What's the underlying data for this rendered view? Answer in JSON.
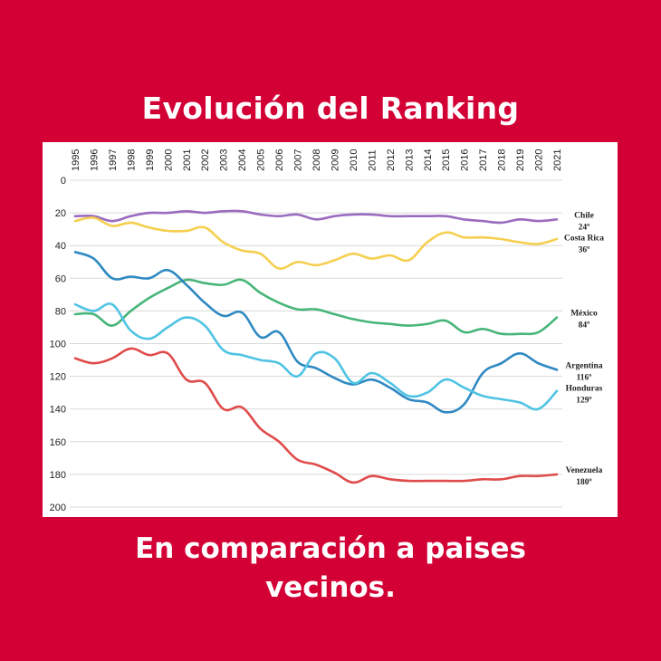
{
  "header": {
    "title": "Evolución del Ranking"
  },
  "footer": {
    "line1": "En comparación a paises",
    "line2": "vecinos."
  },
  "colors": {
    "background": "#d30035",
    "panel": "#ffffff"
  },
  "chart_data": {
    "type": "line",
    "title": "Evolución del Ranking",
    "xlabel": "",
    "ylabel": "",
    "y_inverted": true,
    "ylim": [
      0,
      200
    ],
    "yticks": [
      0,
      20,
      40,
      60,
      80,
      100,
      120,
      140,
      160,
      180,
      200
    ],
    "grid": true,
    "x": [
      1995,
      1996,
      1997,
      1998,
      1999,
      2000,
      2001,
      2002,
      2003,
      2004,
      2005,
      2006,
      2007,
      2008,
      2009,
      2010,
      2011,
      2012,
      2013,
      2014,
      2015,
      2016,
      2017,
      2018,
      2019,
      2020,
      2021
    ],
    "series": [
      {
        "name": "Chile",
        "end_label": "24º",
        "color": "#9b6bbf",
        "values": [
          22,
          22,
          25,
          22,
          20,
          20,
          19,
          20,
          19,
          19,
          21,
          22,
          21,
          24,
          22,
          21,
          21,
          22,
          22,
          22,
          22,
          24,
          25,
          26,
          24,
          25,
          24
        ]
      },
      {
        "name": "Costa Rica",
        "end_label": "36º",
        "color": "#f5cf4f",
        "values": [
          25,
          23,
          28,
          26,
          29,
          31,
          31,
          29,
          38,
          43,
          45,
          54,
          50,
          52,
          49,
          45,
          48,
          46,
          49,
          38,
          32,
          35,
          35,
          36,
          38,
          39,
          36
        ]
      },
      {
        "name": "México",
        "end_label": "84º",
        "color": "#47b578",
        "values": [
          82,
          82,
          89,
          80,
          72,
          66,
          61,
          63,
          64,
          61,
          69,
          75,
          79,
          79,
          82,
          85,
          87,
          88,
          89,
          88,
          86,
          93,
          91,
          94,
          94,
          93,
          84
        ]
      },
      {
        "name": "Argentina",
        "end_label": "116º",
        "color": "#2f89c2",
        "values": [
          44,
          48,
          60,
          59,
          60,
          55,
          64,
          75,
          83,
          81,
          96,
          93,
          111,
          115,
          121,
          125,
          122,
          127,
          134,
          136,
          142,
          137,
          118,
          112,
          106,
          112,
          116
        ]
      },
      {
        "name": "Honduras",
        "end_label": "129º",
        "color": "#4fc3e3",
        "values": [
          76,
          80,
          76,
          92,
          97,
          90,
          84,
          89,
          104,
          107,
          110,
          112,
          120,
          106,
          109,
          124,
          118,
          124,
          132,
          130,
          122,
          127,
          132,
          134,
          136,
          140,
          129
        ]
      },
      {
        "name": "Venezuela",
        "end_label": "180º",
        "color": "#e04b4b",
        "values": [
          109,
          112,
          109,
          103,
          107,
          106,
          122,
          124,
          140,
          139,
          152,
          160,
          171,
          174,
          179,
          185,
          181,
          183,
          184,
          184,
          184,
          184,
          183,
          183,
          181,
          181,
          180
        ]
      }
    ]
  }
}
